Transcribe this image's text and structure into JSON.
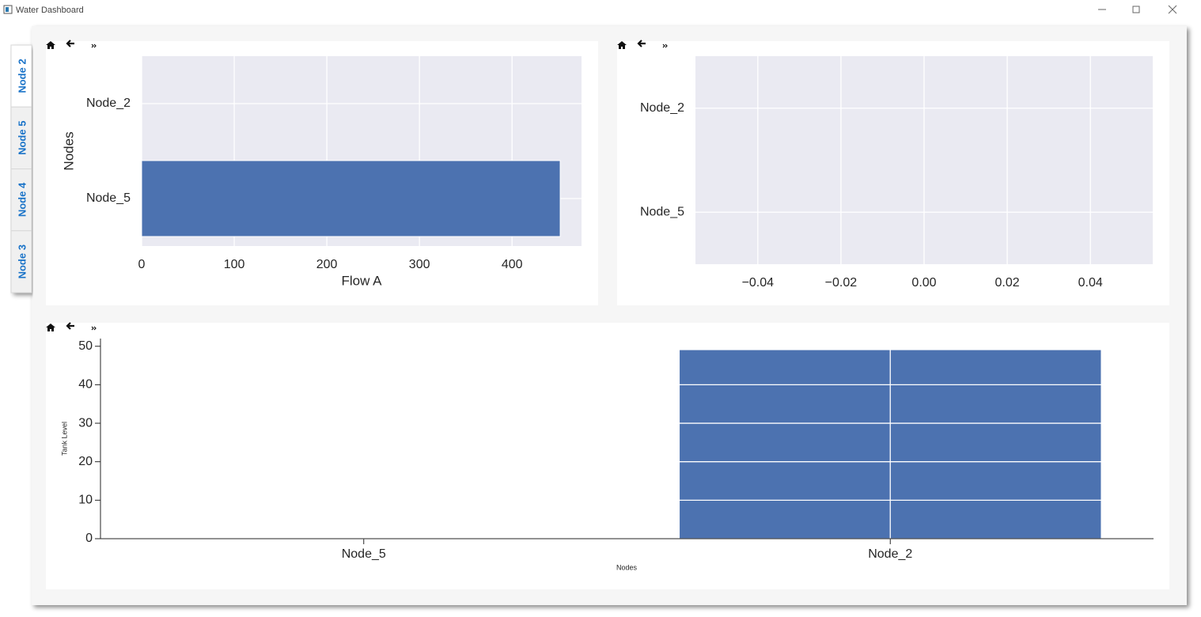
{
  "window": {
    "title": "Water Dashboard"
  },
  "tabs": [
    "Node 2",
    "Node 5",
    "Node 4",
    "Node 3"
  ],
  "chart_data": [
    {
      "type": "barh",
      "categories": [
        "Node_2",
        "Node_5"
      ],
      "values": [
        0,
        452
      ],
      "color": "#4c72b0",
      "xlabel": "Flow A",
      "ylabel": "Nodes",
      "xlim": [
        0,
        475
      ],
      "xticks": [
        0,
        100,
        200,
        300,
        400
      ],
      "grid": true,
      "background": "#eaeaf2"
    },
    {
      "type": "barh",
      "categories": [
        "Node_2",
        "Node_5"
      ],
      "values": [
        0,
        0
      ],
      "color": "#4c72b0",
      "xlim": [
        -0.055,
        0.055
      ],
      "xticks": [
        {
          "value": -0.04,
          "label": "−0.04"
        },
        {
          "value": -0.02,
          "label": "−0.02"
        },
        {
          "value": 0,
          "label": "0.00"
        },
        {
          "value": 0.02,
          "label": "0.02"
        },
        {
          "value": 0.04,
          "label": "0.04"
        }
      ],
      "grid": true,
      "background": "#eaeaf2"
    },
    {
      "type": "bar",
      "categories": [
        "Node_5",
        "Node_2"
      ],
      "values": [
        0,
        49
      ],
      "color": "#4c72b0",
      "xlabel": "Nodes",
      "ylabel": "Tank Level",
      "ylim": [
        0,
        52
      ],
      "yticks": [
        0,
        10,
        20,
        30,
        40,
        50
      ],
      "grid": true,
      "background": "#ffffff"
    }
  ]
}
